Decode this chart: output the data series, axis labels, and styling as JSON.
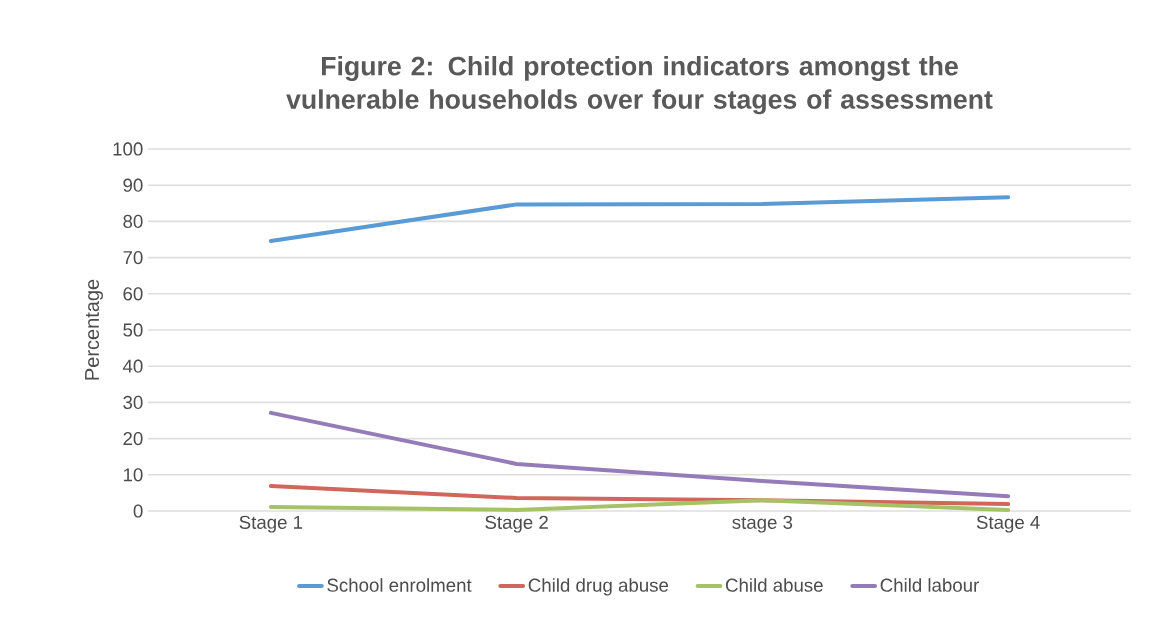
{
  "chart_data": {
    "type": "line",
    "title": "Figure 2: Child protection indicators amongst the vulnerable households over four stages of assessment",
    "ylabel": "Percentage",
    "categories": [
      "Stage 1",
      "Stage 2",
      "stage 3",
      "Stage 4"
    ],
    "series": [
      {
        "name": "School enrolment",
        "color": "#5b9bd5",
        "values": [
          74.6,
          84.7,
          84.8,
          86.7
        ]
      },
      {
        "name": "Child drug abuse",
        "color": "#d0675d",
        "values": [
          6.9,
          3.6,
          3.0,
          1.9
        ]
      },
      {
        "name": "Child abuse",
        "color": "#a5c266",
        "values": [
          1.1,
          0.3,
          3.0,
          0.3
        ]
      },
      {
        "name": "Child labour",
        "color": "#957cb8",
        "values": [
          27.1,
          13.0,
          8.3,
          4.1
        ]
      }
    ],
    "ylim": [
      0,
      100
    ],
    "yticks": [
      0,
      10,
      20,
      30,
      40,
      50,
      60,
      70,
      80,
      90,
      100
    ],
    "grid": "y",
    "legend": "bottom",
    "marker": "none",
    "line_style": "solid"
  }
}
